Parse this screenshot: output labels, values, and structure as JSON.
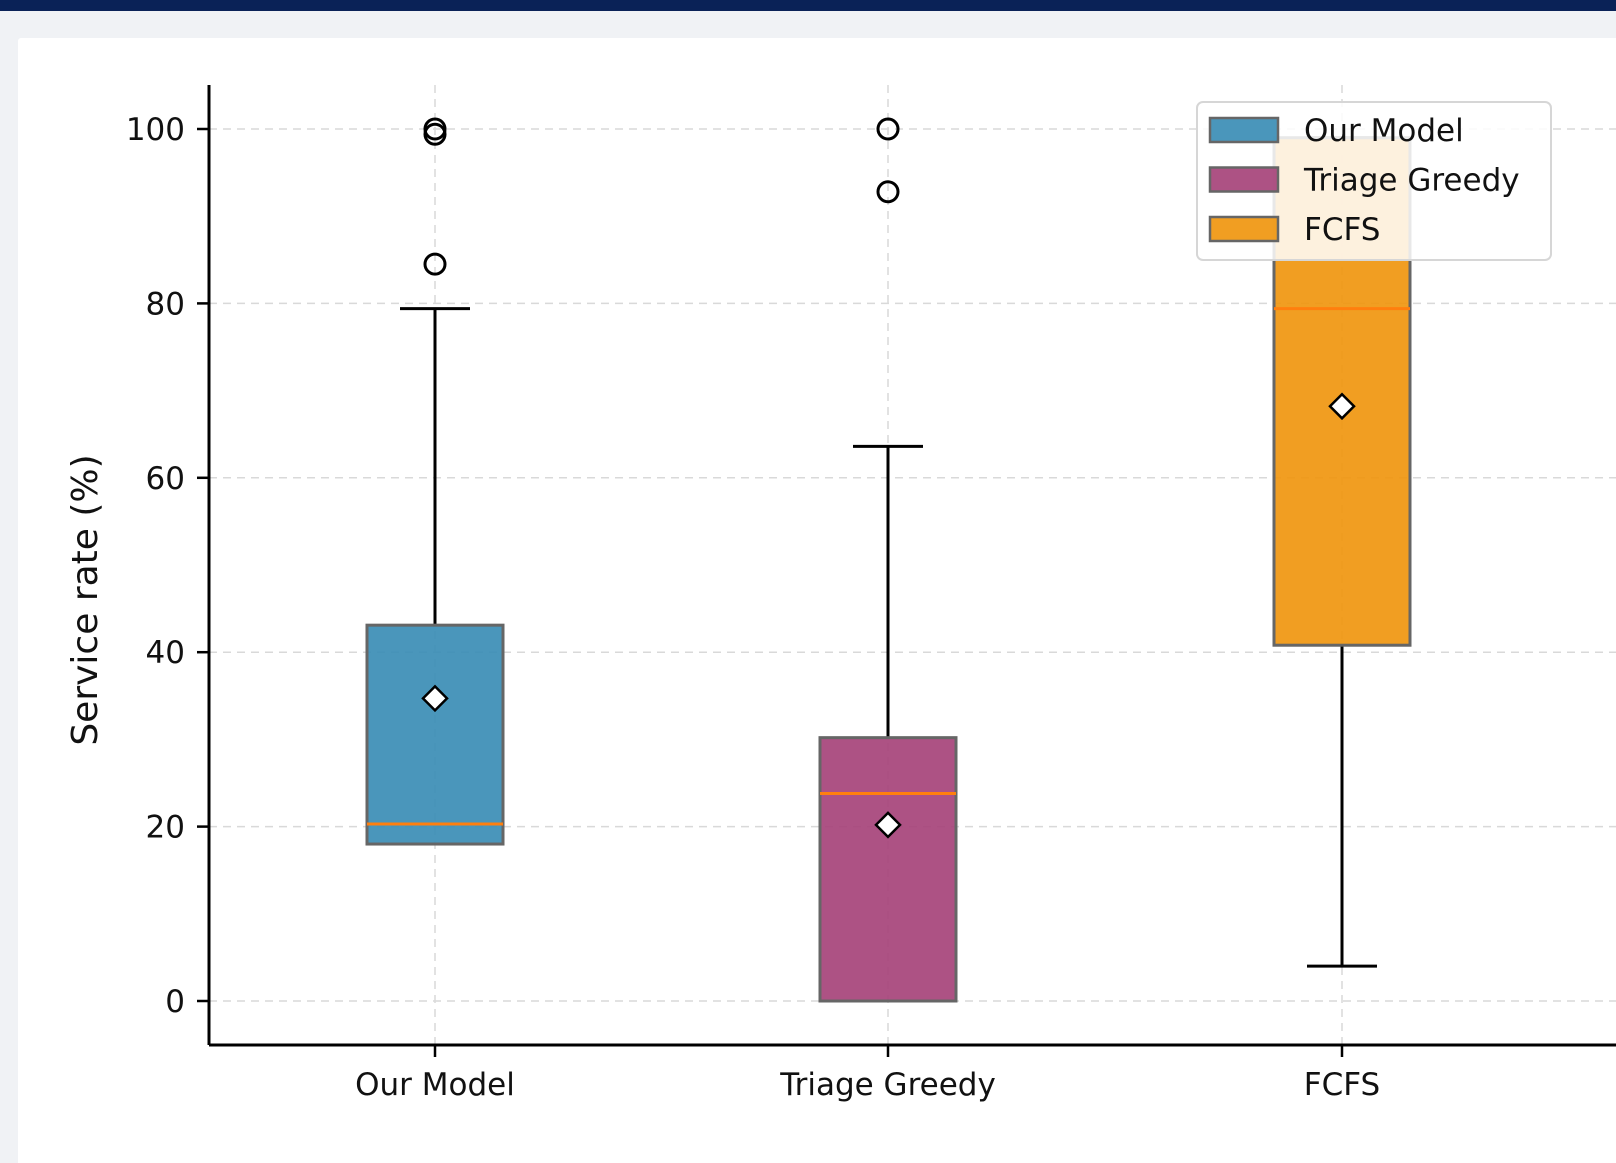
{
  "chart_data": {
    "type": "box",
    "title": "",
    "xlabel": "",
    "ylabel": "Service rate (%)",
    "ylim": [
      -5,
      105
    ],
    "yticks": [
      0,
      20,
      40,
      60,
      80,
      100
    ],
    "grid": true,
    "legend_position": "top-right",
    "categories": [
      "Our Model",
      "Triage Greedy",
      "FCFS"
    ],
    "series": [
      {
        "name": "Our Model",
        "color": "#3b8db5",
        "min": 18.0,
        "q1": 18.0,
        "median": 20.3,
        "q3": 43.1,
        "max": 79.4,
        "mean": 34.7,
        "outliers": [
          84.5,
          99.4,
          100.0
        ]
      },
      {
        "name": "Triage Greedy",
        "color": "#a6437a",
        "min": 0.0,
        "q1": 0.0,
        "median": 23.8,
        "q3": 30.2,
        "max": 63.6,
        "mean": 20.2,
        "outliers": [
          92.8,
          100.0
        ]
      },
      {
        "name": "FCFS",
        "color": "#f0960f",
        "min": 4.0,
        "q1": 40.8,
        "median": 79.4,
        "q3": 99.0,
        "max": 99.0,
        "mean": 68.2,
        "outliers": []
      }
    ]
  }
}
